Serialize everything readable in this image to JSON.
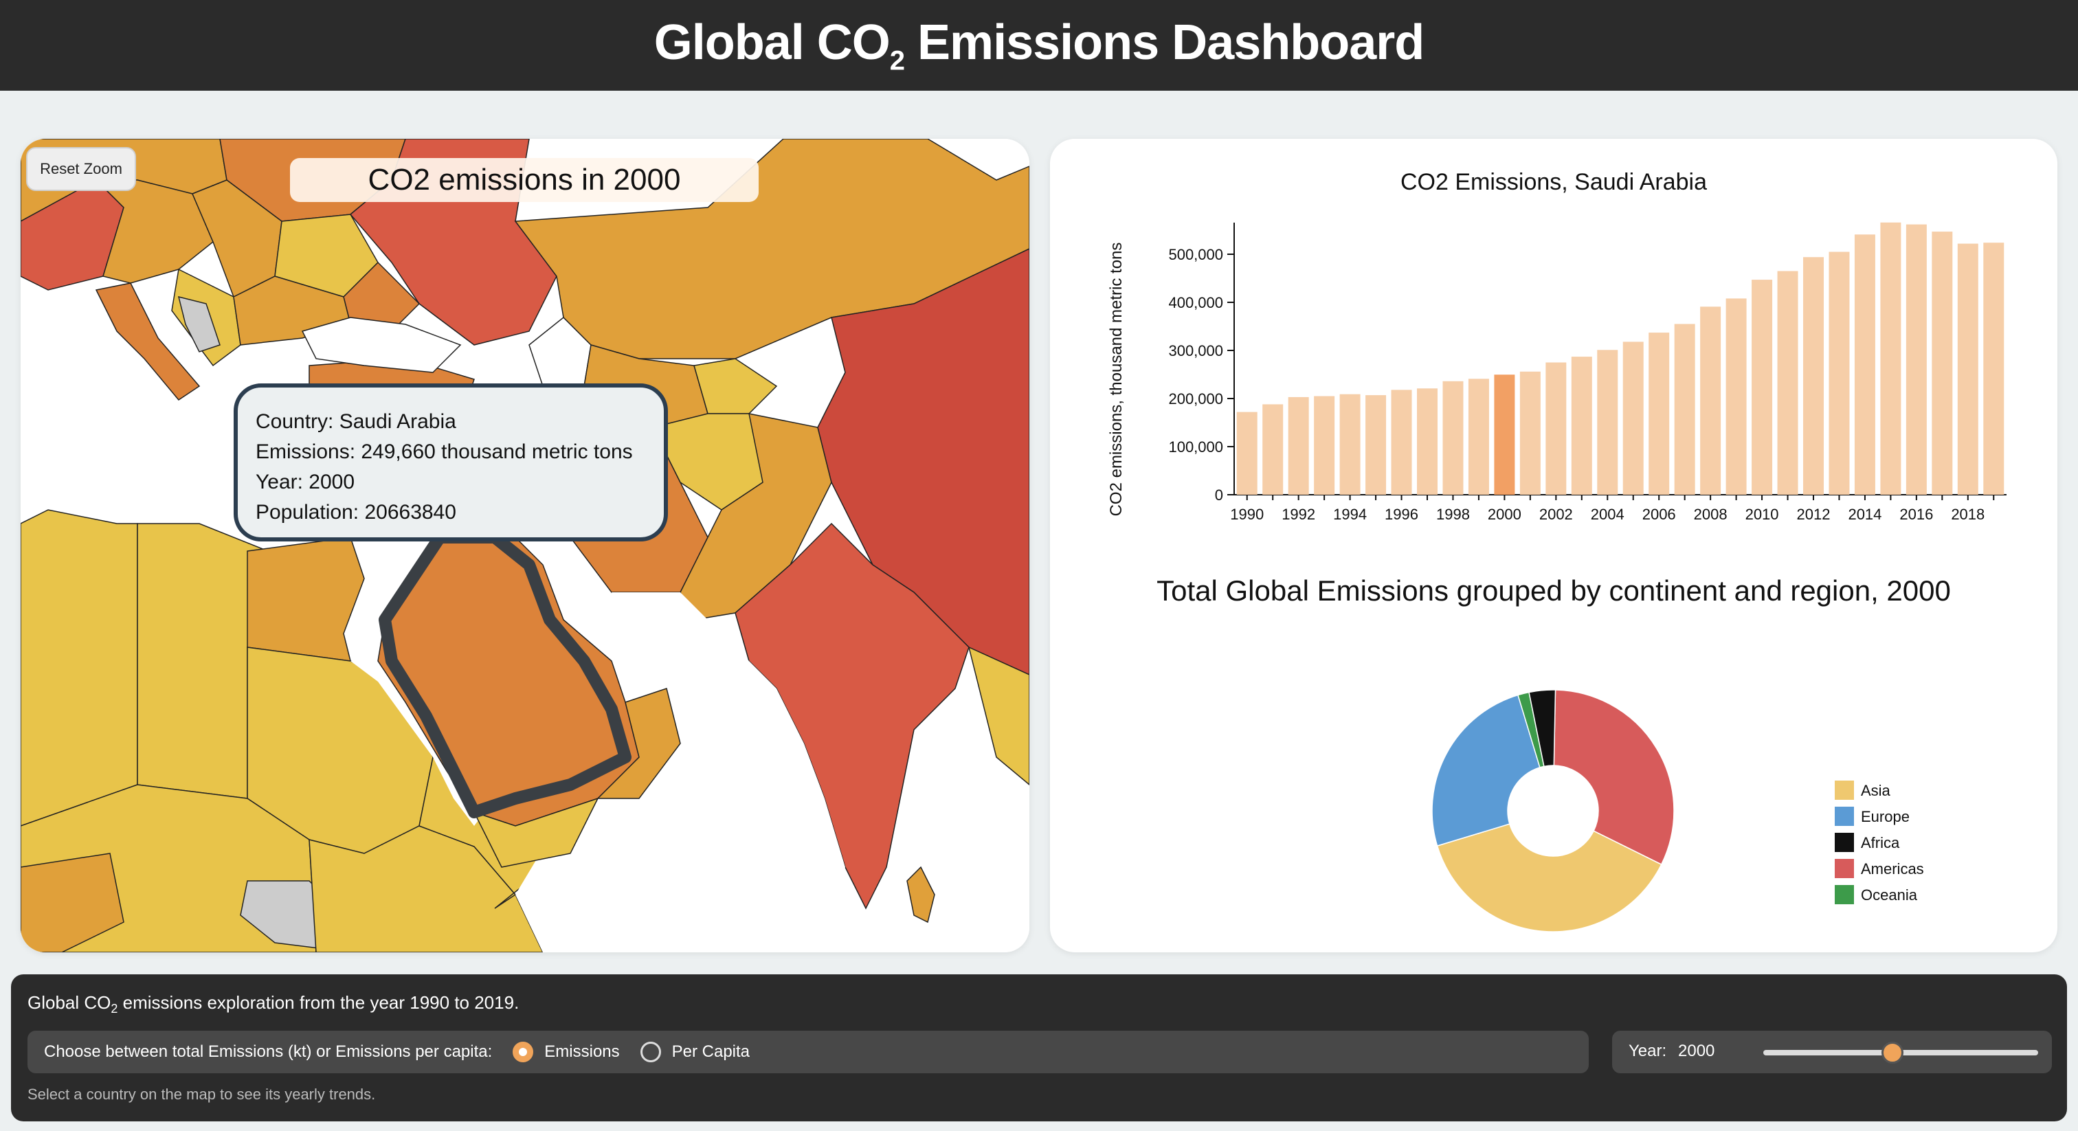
{
  "header": {
    "title_main": "Global CO",
    "title_sub": "2",
    "title_rest": " Emissions Dashboard"
  },
  "map": {
    "reset_label": "Reset Zoom",
    "title": "CO2 emissions in 2000",
    "tooltip": {
      "country": "Country: Saudi Arabia",
      "emissions": "Emissions: 249,660 thousand metric tons",
      "year": "Year: 2000",
      "population": "Population: 20663840"
    },
    "colors": {
      "light": "#e8c44a",
      "mid": "#e0a03a",
      "orange": "#dc833a",
      "red": "#d85a45",
      "deep": "#cc4a3c",
      "nodata": "#cccccc",
      "water": "#ffffff",
      "highlight": "#3a3f44"
    }
  },
  "chart_data": [
    {
      "type": "bar",
      "title": "CO2 Emissions, Saudi Arabia",
      "ylabel": "CO2 emissions, thousand metric tons",
      "xlabel": "",
      "categories": [
        "1990",
        "1991",
        "1992",
        "1993",
        "1994",
        "1995",
        "1996",
        "1997",
        "1998",
        "1999",
        "2000",
        "2001",
        "2002",
        "2003",
        "2004",
        "2005",
        "2006",
        "2007",
        "2008",
        "2009",
        "2010",
        "2011",
        "2012",
        "2013",
        "2014",
        "2015",
        "2016",
        "2017",
        "2018",
        "2019"
      ],
      "values": [
        172000,
        188000,
        203000,
        205000,
        209000,
        207000,
        218000,
        221000,
        236000,
        241000,
        249660,
        256000,
        275000,
        287000,
        301000,
        318000,
        337000,
        355000,
        391000,
        408000,
        447000,
        465000,
        494000,
        505000,
        541000,
        566000,
        562000,
        547000,
        522000,
        524000
      ],
      "highlight_category": "2000",
      "ylim": [
        0,
        560000
      ],
      "yticks": [
        0,
        100000,
        200000,
        300000,
        400000,
        500000
      ],
      "ytick_labels": [
        "0",
        "100,000",
        "200,000",
        "300,000",
        "400,000",
        "500,000"
      ],
      "xtick_labels": [
        "1990",
        "1992",
        "1994",
        "1996",
        "1998",
        "2000",
        "2002",
        "2004",
        "2006",
        "2008",
        "2010",
        "2012",
        "2014",
        "2016",
        "2018"
      ],
      "colors": {
        "bar": "#f6cea8",
        "highlight": "#f2a064"
      }
    },
    {
      "type": "pie",
      "title": "Total Global Emissions grouped by continent and region, 2000",
      "legend_position": "right",
      "slices": [
        {
          "name": "Americas",
          "value": 32,
          "color": "#d75b5b"
        },
        {
          "name": "Asia",
          "value": 38,
          "color": "#efc86f"
        },
        {
          "name": "Europe",
          "value": 25,
          "color": "#5b9bd5"
        },
        {
          "name": "Oceania",
          "value": 1.5,
          "color": "#3d9b4a"
        },
        {
          "name": "Africa",
          "value": 3.5,
          "color": "#111111"
        }
      ],
      "legend": [
        "Asia",
        "Europe",
        "Africa",
        "Americas",
        "Oceania"
      ]
    }
  ],
  "legend_colors": {
    "Asia": "#efc86f",
    "Europe": "#5b9bd5",
    "Africa": "#111111",
    "Americas": "#d75b5b",
    "Oceania": "#3d9b4a"
  },
  "footer": {
    "title_pre": "Global CO",
    "title_sub": "2",
    "title_post": " emissions exploration from the year 1990 to 2019.",
    "choice_label": "Choose between total Emissions (kt) or Emissions per capita:",
    "option_emissions": "Emissions",
    "option_percapita": "Per Capita",
    "year_label": "Year:",
    "year_value": "2000",
    "slider_year": 2000,
    "slider_min": 1990,
    "slider_max": 2019,
    "hint": "Select a country on the map to see its yearly trends."
  }
}
